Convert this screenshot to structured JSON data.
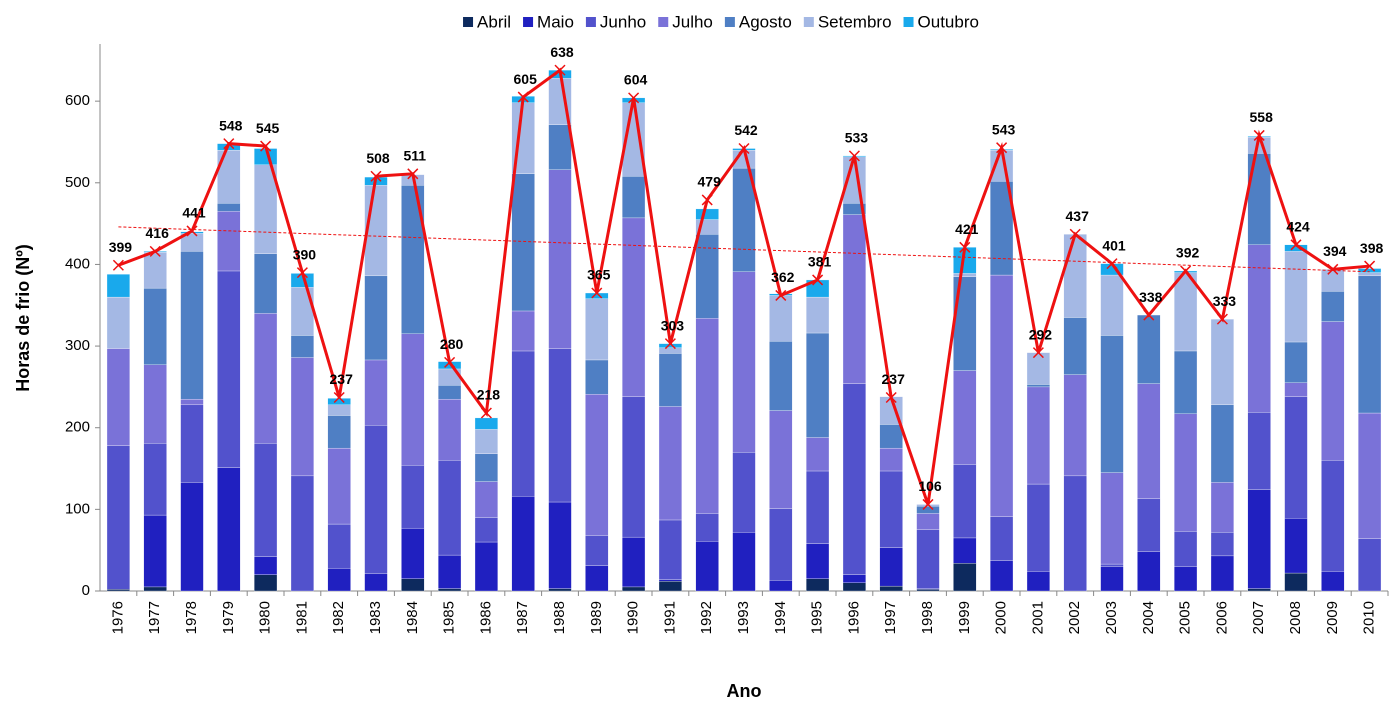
{
  "chart_data": {
    "type": "bar",
    "stacked": true,
    "ylabel": "Horas de frio (Nº)",
    "xlabel": "Ano",
    "categories": [
      "1976",
      "1977",
      "1978",
      "1979",
      "1980",
      "1981",
      "1982",
      "1983",
      "1984",
      "1985",
      "1986",
      "1987",
      "1988",
      "1989",
      "1990",
      "1991",
      "1992",
      "1993",
      "1994",
      "1995",
      "1996",
      "1997",
      "1998",
      "1999",
      "2000",
      "2001",
      "2002",
      "2003",
      "2004",
      "2005",
      "2006",
      "2007",
      "2008",
      "2009",
      "2010"
    ],
    "series": [
      {
        "name": "Abril",
        "color": "#0d2a5e",
        "values": [
          2,
          5,
          0,
          0,
          20,
          0,
          0,
          0,
          15,
          3,
          0,
          0,
          3,
          0,
          5,
          12,
          0,
          0,
          0,
          15,
          10,
          6,
          2,
          34,
          0,
          0,
          0,
          0,
          0,
          0,
          0,
          3,
          22,
          0,
          0
        ]
      },
      {
        "name": "Maio",
        "color": "#2020c0",
        "values": [
          0,
          88,
          133,
          151,
          22,
          0,
          28,
          21,
          62,
          41,
          60,
          116,
          106,
          31,
          61,
          2,
          61,
          72,
          13,
          43,
          10,
          47,
          1,
          31,
          37,
          24,
          0,
          30,
          48,
          30,
          43,
          121,
          67,
          24,
          0
        ]
      },
      {
        "name": "Junho",
        "color": "#5252cc",
        "values": [
          176,
          88,
          95,
          241,
          139,
          141,
          54,
          182,
          77,
          116,
          30,
          178,
          188,
          37,
          172,
          73,
          34,
          98,
          88,
          89,
          234,
          94,
          72,
          90,
          54,
          107,
          141,
          3,
          65,
          43,
          29,
          95,
          149,
          136,
          64
        ]
      },
      {
        "name": "Julho",
        "color": "#7a72d8",
        "values": [
          119,
          96,
          7,
          73,
          159,
          145,
          93,
          80,
          161,
          75,
          44,
          49,
          219,
          173,
          219,
          139,
          239,
          221,
          120,
          41,
          207,
          28,
          20,
          115,
          296,
          119,
          124,
          112,
          141,
          144,
          61,
          205,
          17,
          170,
          154
        ]
      },
      {
        "name": "Agosto",
        "color": "#4f7fc4",
        "values": [
          0,
          94,
          181,
          10,
          73,
          27,
          40,
          103,
          182,
          17,
          34,
          168,
          55,
          42,
          51,
          65,
          103,
          127,
          85,
          128,
          14,
          29,
          9,
          115,
          115,
          3,
          70,
          168,
          84,
          77,
          95,
          112,
          50,
          37,
          168
        ]
      },
      {
        "name": "Setembro",
        "color": "#a4b8e4",
        "values": [
          63,
          44,
          22,
          65,
          109,
          59,
          13,
          111,
          13,
          20,
          30,
          87,
          57,
          75,
          90,
          7,
          18,
          22,
          56,
          44,
          57,
          34,
          2,
          4,
          38,
          39,
          102,
          74,
          0,
          96,
          105,
          20,
          111,
          27,
          4
        ]
      },
      {
        "name": "Outubro",
        "color": "#19a9ec",
        "values": [
          28,
          1,
          2,
          8,
          20,
          17,
          8,
          10,
          0,
          9,
          14,
          8,
          10,
          7,
          6,
          5,
          13,
          2,
          2,
          21,
          1,
          0,
          0,
          32,
          1,
          0,
          0,
          14,
          0,
          2,
          0,
          1,
          8,
          0,
          5
        ]
      }
    ],
    "line": {
      "color": "#ee1111",
      "values": [
        399,
        416,
        441,
        548,
        545,
        390,
        237,
        508,
        511,
        280,
        218,
        605,
        638,
        365,
        604,
        303,
        479,
        542,
        362,
        381,
        533,
        237,
        106,
        421,
        543,
        292,
        437,
        401,
        338,
        392,
        333,
        558,
        424,
        394,
        398
      ]
    },
    "trend": {
      "color": "#ee1111",
      "values": [
        446,
        391
      ]
    },
    "ylim": [
      0,
      670
    ],
    "yticks": [
      0,
      100,
      200,
      300,
      400,
      500,
      600
    ],
    "legend": "top"
  }
}
